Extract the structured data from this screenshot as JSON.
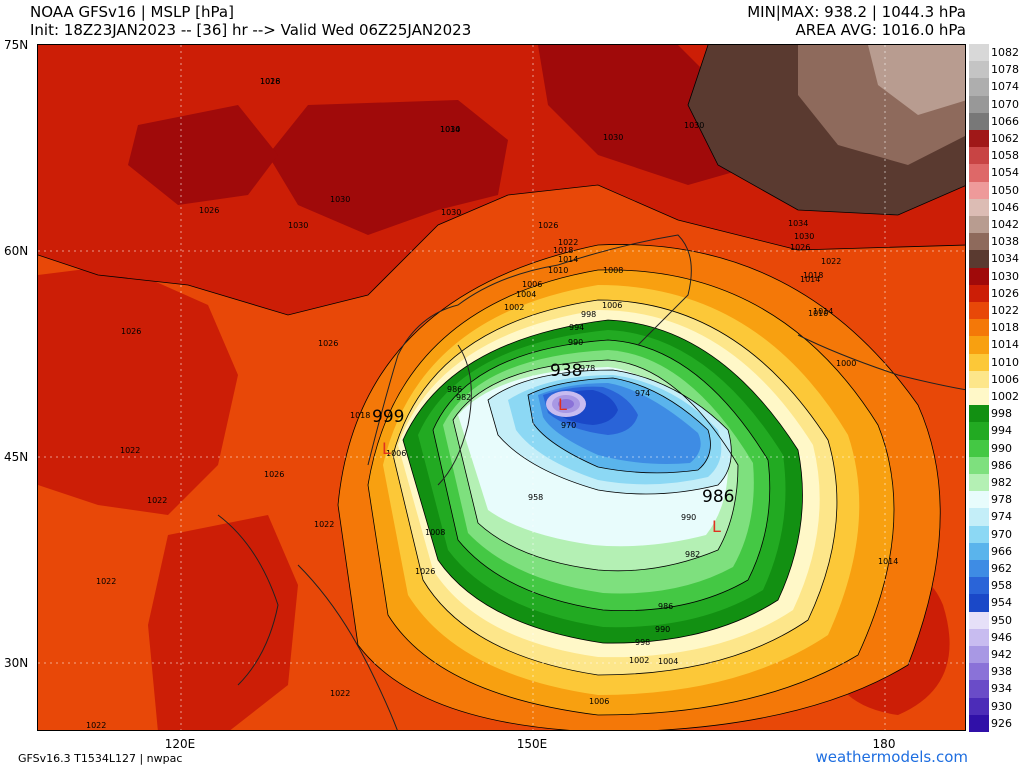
{
  "header": {
    "title": "NOAA GFSv16 |  MSLP [hPa]",
    "init": "Init: 18Z23JAN2023 -- [36] hr --> Valid Wed 06Z25JAN2023",
    "minmax": "MIN|MAX: 938.2 | 1044.3 hPa",
    "area_avg": "AREA AVG: 1016.0 hPa"
  },
  "footer": {
    "model": "GFSv16.3 T1534L127 | nwpac",
    "brand": "weathermodels.com"
  },
  "axes": {
    "lat_labels": [
      "75N",
      "60N",
      "45N",
      "30N"
    ],
    "lon_labels": [
      "120E",
      "150E",
      "180"
    ]
  },
  "pressure_centers": [
    {
      "value": "938",
      "type": "L",
      "color": "#e03020"
    },
    {
      "value": "999",
      "type": "L",
      "color": "#e03020"
    },
    {
      "value": "986",
      "type": "L",
      "color": "#e03020"
    }
  ],
  "contour_labels": [
    "1026",
    "1030",
    "1030",
    "1030",
    "1030",
    "1026",
    "1030",
    "1030",
    "1026",
    "1034",
    "1030",
    "1026",
    "1022",
    "1018",
    "1014",
    "1026",
    "1026",
    "1022",
    "1022",
    "1026",
    "1022",
    "1022",
    "1022",
    "1022",
    "1018",
    "1022",
    "1018",
    "1014",
    "1010",
    "1008",
    "1006",
    "1004",
    "1002",
    "1006",
    "998",
    "994",
    "990",
    "986",
    "982",
    "978",
    "974",
    "970",
    "958",
    "990",
    "982",
    "986",
    "990",
    "998",
    "1002",
    "1004",
    "1006",
    "1008",
    "1010",
    "1006",
    "1014",
    "1014",
    "1000",
    "1026",
    "1018",
    "1014"
  ],
  "colorbar": {
    "levels": [
      "1082",
      "1078",
      "1074",
      "1070",
      "1066",
      "1062",
      "1058",
      "1054",
      "1050",
      "1046",
      "1042",
      "1038",
      "1034",
      "1030",
      "1026",
      "1022",
      "1018",
      "1014",
      "1010",
      "1006",
      "1002",
      "998",
      "994",
      "990",
      "986",
      "982",
      "978",
      "974",
      "970",
      "966",
      "962",
      "958",
      "954",
      "950",
      "946",
      "942",
      "938",
      "934",
      "930",
      "926"
    ],
    "colors": [
      "#d8d8d8",
      "#c4c4c4",
      "#aeaeae",
      "#989898",
      "#787878",
      "#a01818",
      "#c84444",
      "#de6868",
      "#ee9a9a",
      "#dcbcb4",
      "#b89c90",
      "#8e6a5c",
      "#5a3a30",
      "#a00a0a",
      "#cc1e06",
      "#e84808",
      "#f47808",
      "#f8a010",
      "#fcc838",
      "#fde68a",
      "#fff8c8",
      "#129012",
      "#22aa22",
      "#44c844",
      "#7ee07e",
      "#b4f0b4",
      "#e8fcfc",
      "#c4eef8",
      "#8cd8f4",
      "#5ab4ec",
      "#3e8ce4",
      "#2a64d8",
      "#1a48c8",
      "#e6e0f8",
      "#c8bcf0",
      "#a898e4",
      "#8a72d8",
      "#6a4cc8",
      "#4c2cb8",
      "#3010a8"
    ]
  }
}
